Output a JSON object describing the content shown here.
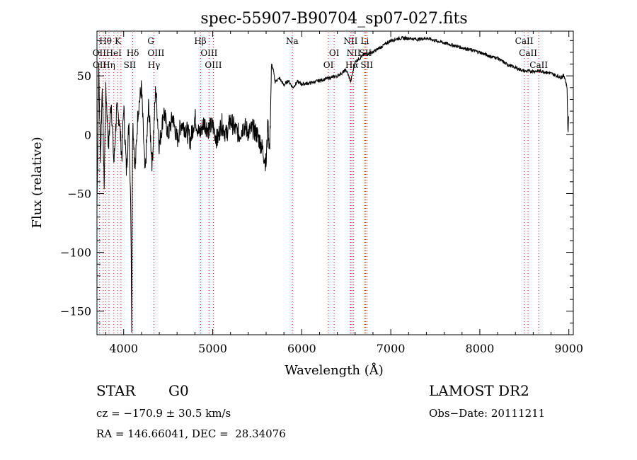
{
  "chart_data": {
    "type": "line",
    "title": "spec-55907-B90704_sp07-027.fits",
    "xlabel": "Wavelength (Å)",
    "ylabel": "Flux (relative)",
    "xlim": [
      3700,
      9050
    ],
    "ylim": [
      -170,
      88
    ],
    "xticks": [
      4000,
      5000,
      6000,
      7000,
      8000,
      9000
    ],
    "xtick_labels": [
      "4000",
      "5000",
      "6000",
      "7000",
      "8000",
      "9000"
    ],
    "yticks": [
      -150,
      -100,
      -50,
      0,
      50
    ],
    "ytick_labels": [
      "−150",
      "−100",
      "−50",
      "0",
      "50"
    ],
    "grid": false,
    "series": [
      {
        "color": "#000000",
        "x": [
          3700,
          3720,
          3740,
          3760,
          3780,
          3800,
          3830,
          3860,
          3890,
          3920,
          3950,
          3980,
          4000,
          4030,
          4060,
          4080,
          4090,
          4100,
          4130,
          4160,
          4200,
          4240,
          4280,
          4320,
          4360,
          4400,
          4450,
          4500,
          4550,
          4600,
          4650,
          4700,
          4750,
          4800,
          4850,
          4900,
          4950,
          5000,
          5050,
          5100,
          5150,
          5200,
          5250,
          5300,
          5350,
          5400,
          5450,
          5500,
          5550,
          5600,
          5620,
          5640,
          5660,
          5680,
          5700,
          5750,
          5800,
          5850,
          5900,
          5950,
          6000,
          6100,
          6200,
          6300,
          6400,
          6500,
          6550,
          6600,
          6700,
          6800,
          6900,
          7000,
          7100,
          7200,
          7300,
          7400,
          7500,
          7600,
          7700,
          7800,
          7900,
          8000,
          8100,
          8200,
          8300,
          8400,
          8500,
          8600,
          8700,
          8800,
          8900,
          8950,
          8980,
          8990,
          9000
        ],
        "y": [
          -60,
          55,
          -20,
          45,
          -45,
          40,
          -10,
          30,
          -25,
          20,
          15,
          -20,
          25,
          -30,
          10,
          -60,
          -168,
          15,
          -30,
          20,
          40,
          -35,
          25,
          -25,
          40,
          -10,
          20,
          0,
          15,
          -5,
          10,
          5,
          -5,
          15,
          0,
          10,
          5,
          8,
          -5,
          10,
          0,
          12,
          5,
          0,
          8,
          2,
          5,
          0,
          -10,
          -25,
          10,
          -15,
          60,
          55,
          45,
          48,
          42,
          46,
          40,
          45,
          43,
          44,
          46,
          48,
          50,
          55,
          45,
          62,
          68,
          70,
          75,
          80,
          82,
          82,
          81,
          82,
          80,
          78,
          76,
          74,
          72,
          70,
          67,
          65,
          60,
          57,
          54,
          54,
          54,
          52,
          49,
          50,
          40,
          0,
          20
        ]
      }
    ],
    "lines": [
      {
        "color": "#ff0000",
        "x": [
          3729,
          3771,
          3798,
          3835,
          3889,
          3934,
          3969,
          4102,
          4341,
          4863,
          4959,
          5007,
          5895,
          6300,
          6364,
          6549,
          6563,
          6583,
          6708,
          6716,
          6731,
          8498,
          8542,
          8662
        ]
      }
    ],
    "line_labels": [
      {
        "text": "Hθ",
        "x": 3797,
        "row": 1
      },
      {
        "text": "K",
        "x": 3934,
        "row": 1
      },
      {
        "text": "G",
        "x": 4305,
        "row": 1
      },
      {
        "text": "Hβ",
        "x": 4861,
        "row": 1
      },
      {
        "text": "Na",
        "x": 5893,
        "row": 1
      },
      {
        "text": "NII",
        "x": 6549,
        "row": 1
      },
      {
        "text": "Li",
        "x": 6708,
        "row": 1
      },
      {
        "text": "CaII",
        "x": 8498,
        "row": 1
      },
      {
        "text": "OII",
        "x": 3727,
        "row": 2
      },
      {
        "text": "HeI",
        "x": 3889,
        "row": 2
      },
      {
        "text": "Hδ",
        "x": 4102,
        "row": 2
      },
      {
        "text": "OIII",
        "x": 4363,
        "row": 2
      },
      {
        "text": "OIII",
        "x": 4959,
        "row": 2
      },
      {
        "text": "OI",
        "x": 6364,
        "row": 2
      },
      {
        "text": "NII",
        "x": 6583,
        "row": 2
      },
      {
        "text": "SII",
        "x": 6716,
        "row": 2
      },
      {
        "text": "CaII",
        "x": 8542,
        "row": 2
      },
      {
        "text": "OII",
        "x": 3729,
        "row": 3
      },
      {
        "text": "Hη",
        "x": 3835,
        "row": 3
      },
      {
        "text": "SII",
        "x": 4069,
        "row": 3
      },
      {
        "text": "Hγ",
        "x": 4340,
        "row": 3
      },
      {
        "text": "OIII",
        "x": 5007,
        "row": 3
      },
      {
        "text": "OI",
        "x": 6300,
        "row": 3
      },
      {
        "text": "Hα",
        "x": 6563,
        "row": 3
      },
      {
        "text": "SII",
        "x": 6731,
        "row": 3
      },
      {
        "text": "CaII",
        "x": 8662,
        "row": 3
      }
    ]
  },
  "info": {
    "object_type": "STAR",
    "subclass": "G0",
    "survey": "LAMOST DR2",
    "redshift": "cz = −170.9 ± 30.5 km/s",
    "obs_date": "Obs−Date: 20111211",
    "coords": "RA = 146.66041, DEC =  28.34076"
  }
}
